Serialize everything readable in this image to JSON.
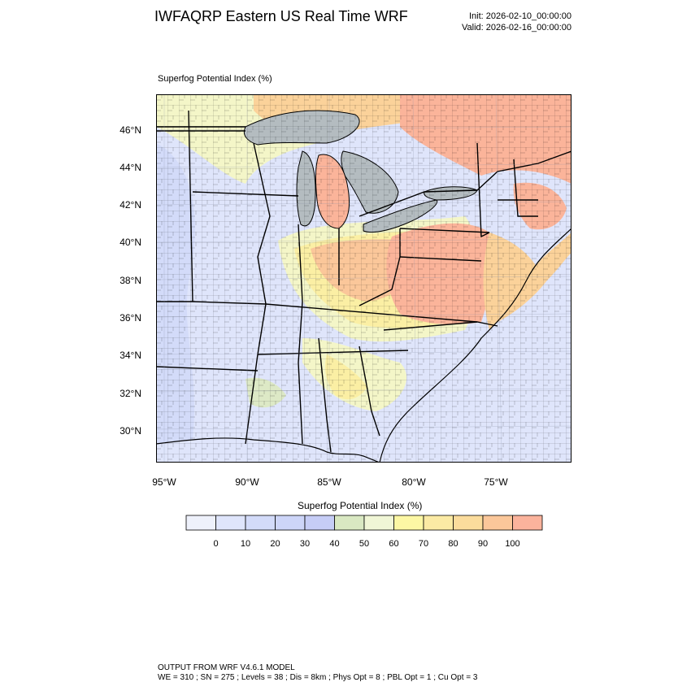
{
  "header": {
    "title": "IWFAQRP Eastern US Real Time WRF",
    "init": "Init: 2026-02-10_00:00:00",
    "valid": "Valid: 2026-02-16_00:00:00"
  },
  "map": {
    "field_label": "Superfog Potential Index   (%)",
    "lat_labels": [
      "46°N",
      "44°N",
      "42°N",
      "40°N",
      "38°N",
      "36°N",
      "34°N",
      "32°N",
      "30°N"
    ],
    "lon_labels": [
      "95°W",
      "90°W",
      "85°W",
      "80°W",
      "75°W"
    ],
    "colors": {
      "water": "#b4bcc0",
      "base_low": "#dfe5fb",
      "mid_blue": "#c9d3f8",
      "green": "#dde9c6",
      "pale_yellow": "#f4f6c8",
      "yellow": "#fbefa4",
      "orange": "#fbd29a",
      "salmon": "#fbb49a",
      "lines": "#000000"
    }
  },
  "colorbar": {
    "title": "Superfog Potential Index   (%)",
    "labels": [
      "0",
      "10",
      "20",
      "30",
      "40",
      "50",
      "60",
      "70",
      "80",
      "90",
      "100"
    ],
    "colors": [
      "#eef1fb",
      "#dfe5fb",
      "#d3dbf9",
      "#cdd5f8",
      "#c6cdf6",
      "#d9e8c2",
      "#f0f6d6",
      "#fcf7a4",
      "#fbeaa4",
      "#fbdc9c",
      "#fbc79a",
      "#fbb39c"
    ]
  },
  "footer": {
    "line1": "OUTPUT FROM WRF V4.6.1 MODEL",
    "line2": "WE = 310 ; SN = 275 ; Levels = 38 ; Dis = 8km ; Phys Opt = 8 ; PBL Opt = 1 ; Cu Opt = 3"
  }
}
